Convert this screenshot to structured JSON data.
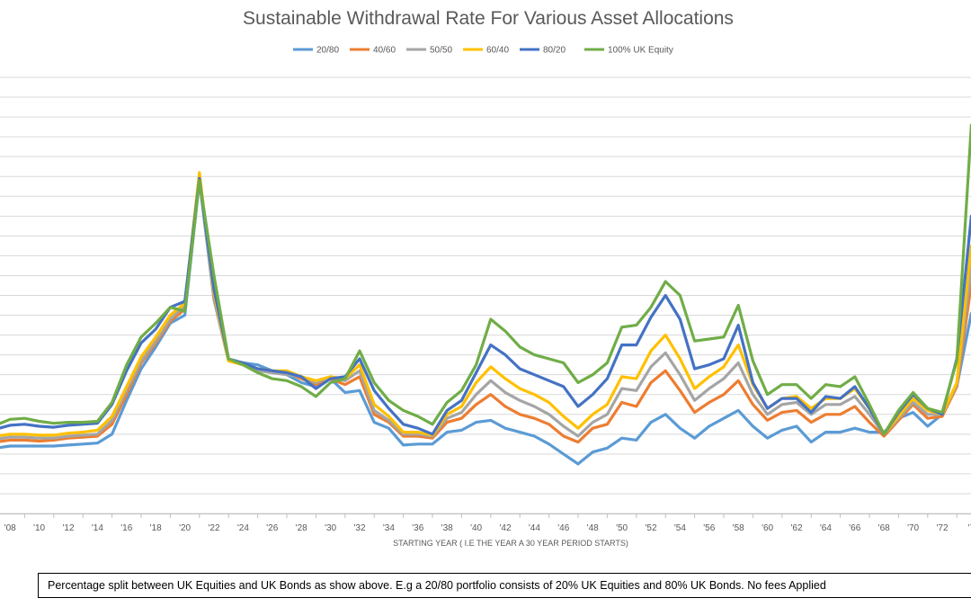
{
  "chart_data": {
    "type": "line",
    "title": "Sustainable Withdrawal Rate For Various Asset Allocations",
    "xlabel": "STARTING YEAR ( I.E THE YEAR A 30 YEAR PERIOD STARTS)",
    "ylabel": "",
    "legend_position": "top",
    "grid": true,
    "x_tick_labels": [
      "'08",
      "'10",
      "'12",
      "'14",
      "'16",
      "'18",
      "'20",
      "'22",
      "'24",
      "'26",
      "'28",
      "'30",
      "'32",
      "'34",
      "'36",
      "'38",
      "'40",
      "'42",
      "'44",
      "'46",
      "'48",
      "'50",
      "'52",
      "'54",
      "'56",
      "'58",
      "'60",
      "'62",
      "'64",
      "'66",
      "'68",
      "'70",
      "'72",
      "'7"
    ],
    "x": [
      1907,
      1908,
      1909,
      1910,
      1911,
      1912,
      1913,
      1914,
      1915,
      1916,
      1917,
      1918,
      1919,
      1920,
      1921,
      1922,
      1923,
      1924,
      1925,
      1926,
      1927,
      1928,
      1929,
      1930,
      1931,
      1932,
      1933,
      1934,
      1935,
      1936,
      1937,
      1938,
      1939,
      1940,
      1941,
      1942,
      1943,
      1944,
      1945,
      1946,
      1947,
      1948,
      1949,
      1950,
      1951,
      1952,
      1953,
      1954,
      1955,
      1956,
      1957,
      1958,
      1959,
      1960,
      1961,
      1962,
      1963,
      1964,
      1965,
      1966,
      1967,
      1968,
      1969,
      1970,
      1971,
      1972,
      1973,
      1974
    ],
    "series": [
      {
        "name": "20/80",
        "color": "#5B9BD5",
        "values": [
          3.3,
          3.4,
          3.4,
          3.4,
          3.4,
          3.45,
          3.5,
          3.55,
          4.0,
          5.7,
          7.3,
          8.4,
          9.6,
          10.0,
          16.8,
          10.8,
          7.7,
          7.6,
          7.5,
          7.2,
          7.0,
          6.6,
          6.4,
          6.8,
          6.1,
          6.2,
          4.6,
          4.3,
          3.45,
          3.5,
          3.5,
          4.1,
          4.2,
          4.6,
          4.7,
          4.3,
          4.1,
          3.9,
          3.5,
          3.0,
          2.5,
          3.1,
          3.3,
          3.8,
          3.7,
          4.6,
          5.0,
          4.3,
          3.8,
          4.4,
          4.8,
          5.2,
          4.4,
          3.8,
          4.2,
          4.4,
          3.6,
          4.1,
          4.1,
          4.3,
          4.1,
          4.1,
          4.8,
          5.1,
          4.4,
          5.0,
          6.4,
          10.1
        ]
      },
      {
        "name": "40/60",
        "color": "#ED7D31",
        "values": [
          3.6,
          3.7,
          3.7,
          3.65,
          3.7,
          3.8,
          3.85,
          3.9,
          4.5,
          6.0,
          7.6,
          8.6,
          9.7,
          10.3,
          17.1,
          10.9,
          7.7,
          7.6,
          7.3,
          7.2,
          7.1,
          6.8,
          6.5,
          6.8,
          6.5,
          6.9,
          5.0,
          4.6,
          3.9,
          3.9,
          3.8,
          4.6,
          4.8,
          5.5,
          6.0,
          5.4,
          5.0,
          4.8,
          4.5,
          3.9,
          3.6,
          4.3,
          4.5,
          5.6,
          5.4,
          6.6,
          7.2,
          6.2,
          5.1,
          5.6,
          6.0,
          6.7,
          5.5,
          4.7,
          5.1,
          5.2,
          4.6,
          5.0,
          5.0,
          5.4,
          4.6,
          3.9,
          4.7,
          5.5,
          4.8,
          4.9,
          6.4,
          11.6
        ]
      },
      {
        "name": "50/50",
        "color": "#A5A5A5",
        "values": [
          3.75,
          3.85,
          3.85,
          3.8,
          3.8,
          3.9,
          3.95,
          4.0,
          4.7,
          6.2,
          7.7,
          8.7,
          9.8,
          10.5,
          17.0,
          11.0,
          7.7,
          7.5,
          7.2,
          7.1,
          7.0,
          6.9,
          6.6,
          6.9,
          6.7,
          7.2,
          5.2,
          4.7,
          4.0,
          4.0,
          3.9,
          4.8,
          5.1,
          6.0,
          6.7,
          6.1,
          5.7,
          5.4,
          5.0,
          4.4,
          3.9,
          4.6,
          5.0,
          6.3,
          6.2,
          7.4,
          8.1,
          7.0,
          5.7,
          6.3,
          6.8,
          7.6,
          6.0,
          5.0,
          5.5,
          5.6,
          5.0,
          5.5,
          5.5,
          5.9,
          5.0,
          4.0,
          4.8,
          5.6,
          5.0,
          5.0,
          6.5,
          12.5
        ]
      },
      {
        "name": "60/40",
        "color": "#FFC000",
        "values": [
          3.9,
          4.0,
          4.0,
          3.95,
          3.95,
          4.05,
          4.1,
          4.2,
          4.9,
          6.4,
          7.9,
          8.9,
          10.0,
          10.6,
          17.2,
          11.1,
          7.7,
          7.5,
          7.3,
          7.2,
          7.2,
          6.9,
          6.7,
          6.9,
          6.8,
          7.5,
          5.5,
          4.9,
          4.1,
          4.1,
          3.95,
          5.0,
          5.4,
          6.6,
          7.4,
          6.8,
          6.3,
          6.0,
          5.6,
          4.9,
          4.3,
          5.0,
          5.5,
          6.9,
          6.8,
          8.2,
          9.0,
          7.8,
          6.3,
          6.9,
          7.4,
          8.5,
          6.5,
          5.3,
          5.8,
          5.9,
          5.3,
          5.8,
          5.8,
          6.3,
          5.3,
          4.0,
          4.9,
          5.8,
          5.2,
          5.0,
          6.6,
          13.5
        ]
      },
      {
        "name": "80/20",
        "color": "#4472C4",
        "values": [
          4.25,
          4.45,
          4.5,
          4.4,
          4.35,
          4.45,
          4.5,
          4.55,
          5.5,
          7.2,
          8.6,
          9.3,
          10.4,
          10.7,
          16.9,
          11.3,
          7.8,
          7.6,
          7.3,
          7.2,
          7.1,
          6.9,
          6.3,
          6.8,
          6.9,
          7.8,
          6.2,
          5.3,
          4.5,
          4.3,
          4.0,
          5.2,
          5.7,
          7.1,
          8.5,
          8.0,
          7.3,
          7.0,
          6.7,
          6.4,
          5.4,
          6.0,
          6.8,
          8.5,
          8.5,
          9.9,
          11.0,
          9.8,
          7.3,
          7.5,
          7.8,
          9.5,
          6.6,
          5.3,
          5.8,
          5.8,
          5.1,
          5.9,
          5.8,
          6.4,
          5.3,
          4.0,
          5.1,
          6.0,
          5.3,
          5.0,
          7.8,
          15.0
        ]
      },
      {
        "name": "100% UK Equity",
        "color": "#70AD47",
        "values": [
          4.45,
          4.75,
          4.8,
          4.65,
          4.55,
          4.6,
          4.6,
          4.65,
          5.6,
          7.5,
          8.9,
          9.6,
          10.4,
          10.2,
          16.8,
          12.0,
          7.8,
          7.5,
          7.1,
          6.8,
          6.7,
          6.4,
          5.9,
          6.6,
          6.8,
          8.2,
          6.6,
          5.7,
          5.2,
          4.9,
          4.5,
          5.6,
          6.2,
          7.5,
          9.8,
          9.2,
          8.4,
          8.0,
          7.8,
          7.6,
          6.6,
          7.0,
          7.6,
          9.4,
          9.5,
          10.4,
          11.7,
          11.0,
          8.7,
          8.8,
          8.9,
          10.5,
          7.7,
          6.0,
          6.5,
          6.5,
          5.8,
          6.5,
          6.4,
          6.9,
          5.5,
          4.0,
          5.2,
          6.1,
          5.3,
          5.1,
          7.7,
          19.6
        ]
      }
    ],
    "ylim": [
      0,
      22
    ],
    "y_tick_step": 1
  },
  "footnote": "Percentage split between UK Equities and UK Bonds  as show above. E.g a 20/80 portfolio consists of 20% UK Equities and 80% UK Bonds.  No fees Applied"
}
